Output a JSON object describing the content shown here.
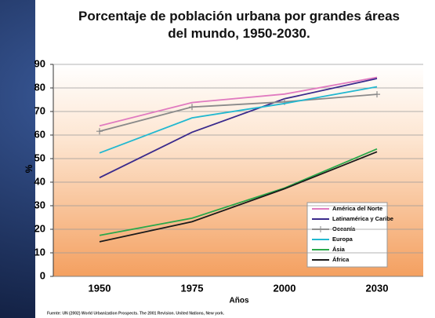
{
  "chart_data": {
    "type": "line",
    "title": "Porcentaje de población urbana por grandes áreas del mundo, 1950-2030.",
    "y_label": "%",
    "x_label": "Años",
    "source": "Fuente: UN (2002) World Urbanization Prospects. The 2001 Revision. United Nations, New york.",
    "categories": [
      "1950",
      "1975",
      "2000",
      "2030"
    ],
    "ylim": [
      0,
      90
    ],
    "yticks": [
      0,
      10,
      20,
      30,
      40,
      50,
      60,
      70,
      80,
      90
    ],
    "series": [
      {
        "name": "América del Norte",
        "color": "#e07ac0",
        "values": [
          63.9,
          73.8,
          77.4,
          84.5
        ]
      },
      {
        "name": "Latinamérica y Caribe",
        "color": "#3a2a8c",
        "values": [
          41.9,
          61.2,
          75.4,
          84.0
        ]
      },
      {
        "name": "Oceanía",
        "color": "#8a8a8a",
        "marker": "+",
        "values": [
          61.6,
          71.9,
          74.1,
          77.3
        ]
      },
      {
        "name": "Europa",
        "color": "#22b8d0",
        "values": [
          52.4,
          67.3,
          73.4,
          80.5
        ]
      },
      {
        "name": "Ásia",
        "color": "#2aa84a",
        "values": [
          17.4,
          24.7,
          37.5,
          54.1
        ]
      },
      {
        "name": "África",
        "color": "#1a1a1a",
        "values": [
          14.7,
          23.2,
          37.2,
          52.9
        ]
      }
    ]
  }
}
